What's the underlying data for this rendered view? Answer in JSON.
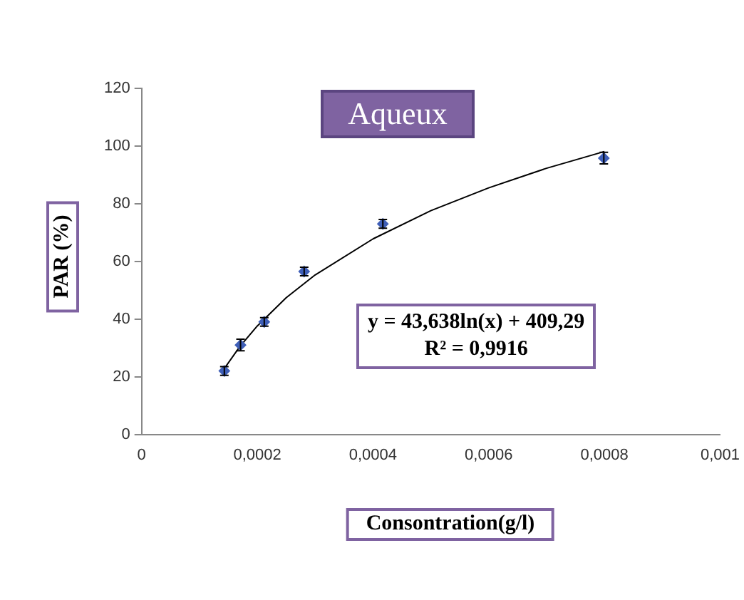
{
  "chart_data": {
    "type": "scatter",
    "title": "Aqueux",
    "xlabel": "Consontration(g/l)",
    "ylabel": "PAR (%)",
    "xlim": [
      0,
      0.001
    ],
    "xticks": [
      0,
      {
        "value": 0.0002,
        "label": "0,0002"
      },
      {
        "value": 0.0004,
        "label": "0,0004"
      },
      {
        "value": 0.0006,
        "label": "0,0006"
      },
      {
        "value": 0.0008,
        "label": "0,0008"
      },
      {
        "value": 0.001,
        "label": "0,001"
      }
    ],
    "ylim": [
      0,
      120
    ],
    "yticks": [
      0,
      20,
      40,
      60,
      80,
      100,
      120
    ],
    "grid": false,
    "legend": false,
    "marker": "diamond",
    "series": [
      {
        "color": "#3f5fb8",
        "x": [
          0.000143,
          0.000171,
          0.000212,
          0.000281,
          0.000417,
          0.000799
        ],
        "values": [
          22,
          31,
          39,
          56.5,
          73,
          95.8
        ],
        "errors": [
          1.5,
          2,
          1.5,
          1.5,
          1.5,
          2
        ]
      },
      {
        "type": "line",
        "color": "#000000",
        "marker": "none",
        "x": [
          0.00014,
          0.00017,
          0.0002,
          0.00025,
          0.0003,
          0.0004,
          0.0005,
          0.0006,
          0.0007,
          0.0008
        ],
        "values": [
          22,
          30.5,
          37.6,
          47.4,
          55.3,
          67.8,
          77.6,
          85.5,
          92.3,
          98.1
        ]
      }
    ],
    "annotations": [
      "y = 43,638ln(x) + 409,29",
      "R² = 0,9916"
    ]
  }
}
